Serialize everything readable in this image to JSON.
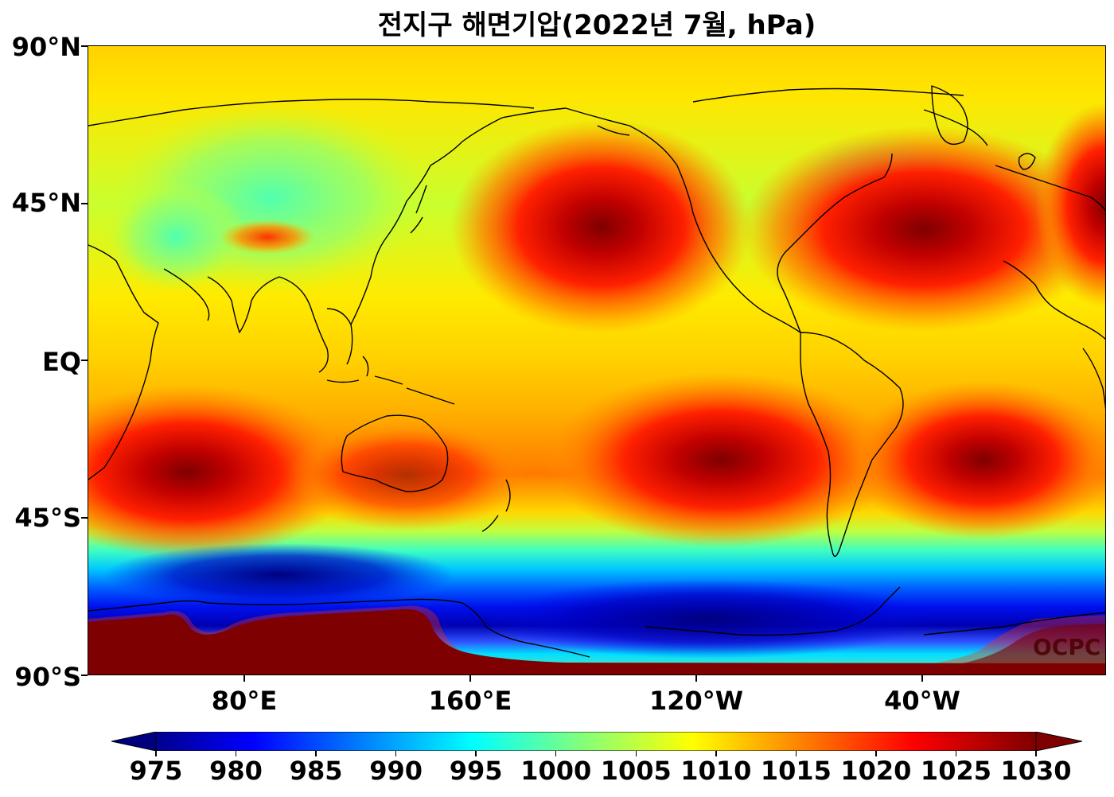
{
  "title": "전지구 해면기압(2022년 7월, hPa)",
  "watermark": "OCPC",
  "map": {
    "type": "sea-level-pressure-map",
    "projection": "equirectangular",
    "central_longitude": 180,
    "lon_range": [
      30,
      390
    ],
    "lat_range": [
      -90,
      90
    ],
    "lat_labels": [
      "90°N",
      "45°N",
      "EQ",
      "45°S",
      "90°S"
    ],
    "lat_values": [
      90,
      45,
      0,
      -45,
      -90
    ],
    "lon_labels": [
      "80°E",
      "160°E",
      "120°W",
      "40°W"
    ],
    "lon_values": [
      80,
      160,
      240,
      320
    ],
    "coastlines": true,
    "high_pressure_centers": [
      {
        "lon": 212,
        "lat": 39,
        "value_hpa": 1030
      },
      {
        "lon": 326,
        "lat": 38,
        "value_hpa": 1026
      },
      {
        "lon": 66,
        "lat": -31,
        "value_hpa": 1030
      },
      {
        "lon": 257,
        "lat": -28,
        "value_hpa": 1030
      },
      {
        "lon": 360,
        "lat": -28,
        "value_hpa": 1026
      }
    ]
  },
  "colorbar": {
    "cmap": "jet",
    "extend": "both",
    "min": 975,
    "max": 1030,
    "ticks": [
      "975",
      "980",
      "985",
      "990",
      "995",
      "1000",
      "1005",
      "1010",
      "1015",
      "1020",
      "1025",
      "1030"
    ],
    "colors": [
      "#00007f",
      "#0000ff",
      "#007fff",
      "#00ffff",
      "#7fff7f",
      "#ffff00",
      "#ff7f00",
      "#ff0000",
      "#7f0000"
    ]
  }
}
